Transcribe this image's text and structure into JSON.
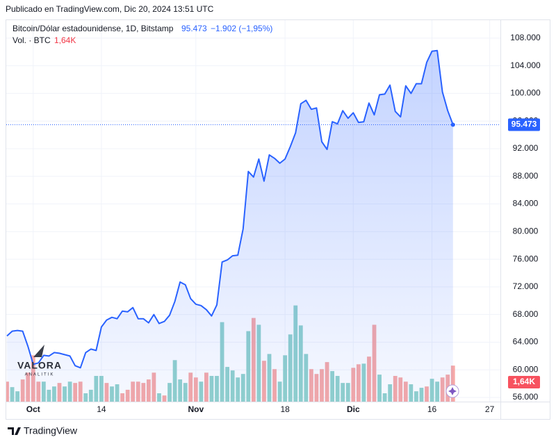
{
  "header": {
    "published": "Publicado en TradingView.com, Dic 20, 2024 13:51 UTC"
  },
  "footer": {
    "brand": "TradingView"
  },
  "watermark": {
    "name": "VALORA",
    "tagline": "ANALITIK"
  },
  "chart_data": {
    "type": "area",
    "title": "Bitcoin/Dólar estadounidense, 1D, Bitstamp",
    "change": "−1.902 (−1,95%)",
    "color": "#2962ff",
    "last_price": {
      "value": 95473,
      "label": "95.473"
    },
    "categories": [
      null,
      null,
      null,
      null,
      null,
      "Oct",
      null,
      null,
      null,
      null,
      null,
      null,
      null,
      null,
      null,
      null,
      null,
      null,
      "14",
      null,
      null,
      null,
      null,
      null,
      null,
      null,
      null,
      null,
      null,
      null,
      null,
      null,
      null,
      null,
      null,
      null,
      "Nov",
      null,
      null,
      null,
      null,
      null,
      null,
      null,
      null,
      null,
      null,
      null,
      null,
      null,
      null,
      null,
      null,
      "18",
      null,
      null,
      null,
      null,
      null,
      null,
      null,
      null,
      null,
      null,
      null,
      null,
      "Dic",
      null,
      null,
      null,
      null,
      null,
      null,
      null,
      null,
      null,
      null,
      null,
      null,
      null,
      null,
      "16",
      null,
      null,
      null,
      null,
      null,
      null,
      null,
      null,
      null,
      null,
      "27"
    ],
    "values": [
      64900,
      65600,
      65700,
      65600,
      63400,
      60800,
      61000,
      62100,
      62000,
      62500,
      62400,
      62200,
      62000,
      60600,
      60300,
      62500,
      63000,
      62800,
      66200,
      67200,
      67600,
      67400,
      68500,
      68400,
      69000,
      67400,
      67400,
      66800,
      68000,
      66700,
      67000,
      67900,
      69900,
      72700,
      72300,
      70300,
      69500,
      69300,
      68700,
      67800,
      69400,
      75600,
      75900,
      76500,
      76600,
      80400,
      88700,
      87900,
      90500,
      87300,
      91100,
      90600,
      89900,
      90500,
      92300,
      94300,
      98500,
      99000,
      97700,
      97900,
      93000,
      91900,
      95900,
      95600,
      97500,
      96400,
      97200,
      95800,
      95900,
      98600,
      96900,
      99800,
      99900,
      101200,
      97400,
      96600,
      101100,
      100000,
      101400,
      101400,
      104500,
      106100,
      106200,
      100200,
      97500,
      95473,
      null,
      null,
      null,
      null,
      null,
      null,
      null
    ],
    "ylim": [
      55400,
      110600
    ],
    "yticks": [
      {
        "value": 56000,
        "label": "56.000"
      },
      {
        "value": 60000,
        "label": "60.000"
      },
      {
        "value": 64000,
        "label": "64.000"
      },
      {
        "value": 68000,
        "label": "68.000"
      },
      {
        "value": 72000,
        "label": "72.000"
      },
      {
        "value": 76000,
        "label": "76.000"
      },
      {
        "value": 80000,
        "label": "80.000"
      },
      {
        "value": 84000,
        "label": "84.000"
      },
      {
        "value": 88000,
        "label": "88.000"
      },
      {
        "value": 92000,
        "label": "92.000"
      },
      {
        "value": 96000,
        "label": "96.000"
      },
      {
        "value": 100000,
        "label": "100.000"
      },
      {
        "value": 104000,
        "label": "104.000"
      },
      {
        "value": 108000,
        "label": "108.000"
      }
    ],
    "grid": true,
    "volume": {
      "label": "Vol. · BTC",
      "last_label": "1,64K",
      "axis": "y2",
      "values": [
        910,
        660,
        470,
        1010,
        1320,
        2110,
        910,
        910,
        540,
        690,
        850,
        690,
        910,
        850,
        910,
        380,
        540,
        1170,
        1170,
        850,
        690,
        790,
        380,
        540,
        910,
        910,
        850,
        1010,
        1320,
        380,
        280,
        850,
        1890,
        1010,
        850,
        1320,
        1100,
        910,
        1320,
        1170,
        1170,
        3620,
        1580,
        1420,
        1100,
        1260,
        3210,
        3810,
        3500,
        1860,
        2170,
        1480,
        910,
        2110,
        3060,
        4380,
        3470,
        2170,
        1480,
        1260,
        1480,
        1800,
        1390,
        1170,
        850,
        850,
        1540,
        1700,
        1730,
        2050,
        3500,
        1230,
        380,
        790,
        1170,
        1100,
        910,
        790,
        470,
        630,
        690,
        1040,
        910,
        1100,
        1230,
        1640,
        null,
        null,
        null,
        null,
        null,
        null,
        null
      ],
      "colors": [
        "#f7a9a7",
        "#92d2cc",
        "#92d2cc",
        "#f7a9a7",
        "#f7a9a7",
        "#f7a9a7",
        "#f7a9a7",
        "#92d2cc",
        "#92d2cc",
        "#92d2cc",
        "#f7a9a7",
        "#92d2cc",
        "#92d2cc",
        "#f7a9a7",
        "#f7a9a7",
        "#92d2cc",
        "#92d2cc",
        "#92d2cc",
        "#92d2cc",
        "#f7a9a7",
        "#92d2cc",
        "#92d2cc",
        "#f7a9a7",
        "#f7a9a7",
        "#f7a9a7",
        "#f7a9a7",
        "#f7a9a7",
        "#f7a9a7",
        "#f7a9a7",
        "#92d2cc",
        "#f7a9a7",
        "#92d2cc",
        "#92d2cc",
        "#92d2cc",
        "#92d2cc",
        "#f7a9a7",
        "#f7a9a7",
        "#92d2cc",
        "#f7a9a7",
        "#92d2cc",
        "#92d2cc",
        "#92d2cc",
        "#92d2cc",
        "#92d2cc",
        "#92d2cc",
        "#92d2cc",
        "#92d2cc",
        "#f7a9a7",
        "#92d2cc",
        "#f7a9a7",
        "#92d2cc",
        "#f7a9a7",
        "#92d2cc",
        "#92d2cc",
        "#92d2cc",
        "#92d2cc",
        "#92d2cc",
        "#92d2cc",
        "#f7a9a7",
        "#f7a9a7",
        "#f7a9a7",
        "#f7a9a7",
        "#92d2cc",
        "#92d2cc",
        "#92d2cc",
        "#92d2cc",
        "#f7a9a7",
        "#f7a9a7",
        "#92d2cc",
        "#f7a9a7",
        "#f7a9a7",
        "#92d2cc",
        "#92d2cc",
        "#92d2cc",
        "#f7a9a7",
        "#f7a9a7",
        "#f7a9a7",
        "#92d2cc",
        "#92d2cc",
        "#92d2cc",
        "#f7a9a7",
        "#92d2cc",
        "#92d2cc",
        "#f7a9a7",
        "#f7a9a7",
        "#f7a9a7",
        null,
        null,
        null,
        null,
        null,
        null,
        null
      ]
    },
    "y2lim": [
      0,
      5000
    ]
  }
}
